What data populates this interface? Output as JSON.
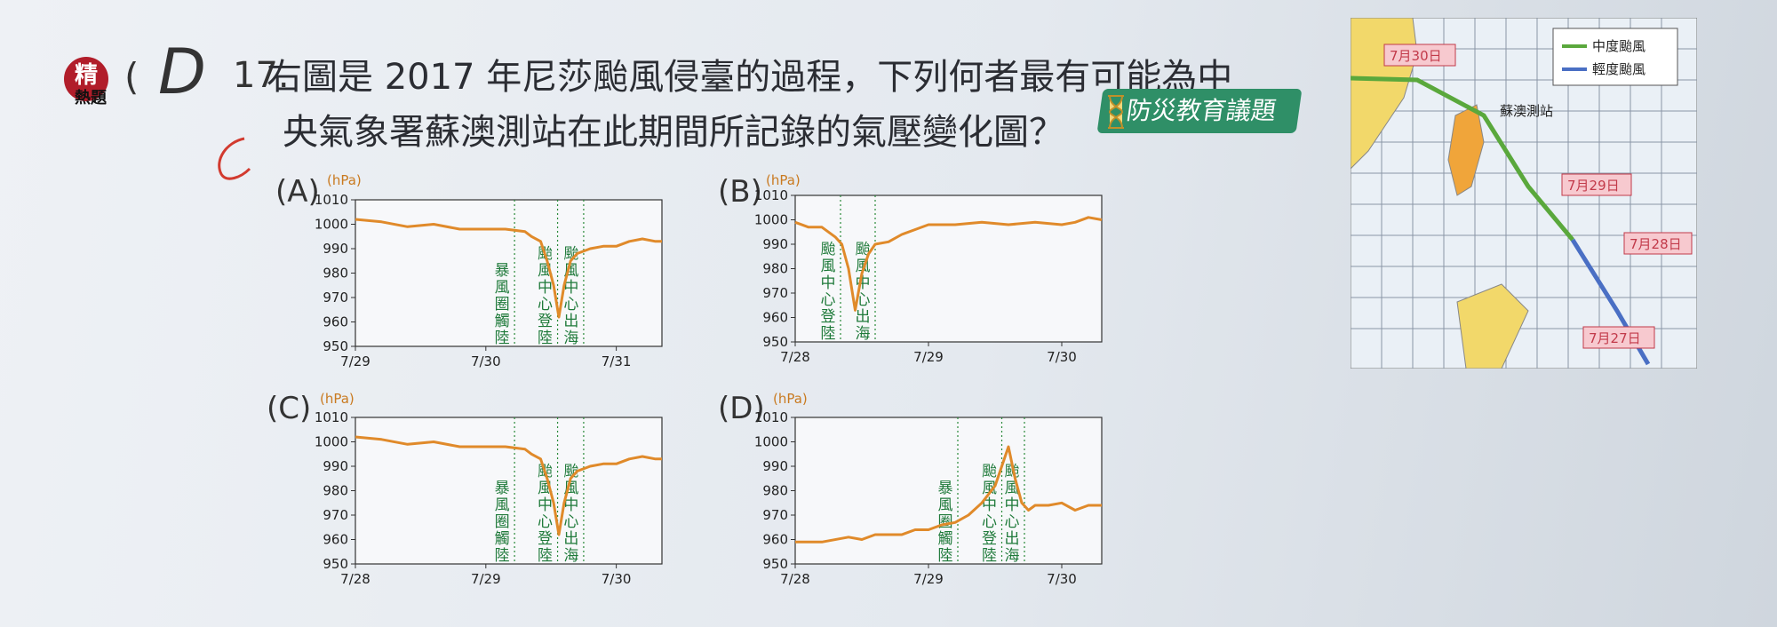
{
  "question": {
    "badge_main": "精",
    "badge_sub": "熱題",
    "paren_open": "(",
    "answer_mark": "D",
    "number": "17.",
    "line1": "右圖是 2017 年尼莎颱風侵臺的過程，下列何者最有可能為中",
    "line2": "央氣象署蘇澳測站在此期間所記錄的氣壓變化圖？",
    "tag": "防災教育議題"
  },
  "map": {
    "legend": [
      {
        "label": "中度颱風",
        "color": "#5aa83c"
      },
      {
        "label": "輕度颱風",
        "color": "#4a6fc4"
      }
    ],
    "station": "蘇澳測站",
    "dates": [
      "7月30日",
      "7月29日",
      "7月28日",
      "7月27日"
    ]
  },
  "chart_data": [
    {
      "label": "(A)",
      "type": "line",
      "unit": "(hPa)",
      "ylim": [
        950,
        1010
      ],
      "yticks": [
        1010,
        1000,
        990,
        980,
        970,
        960,
        950
      ],
      "xtick_labels": [
        "7/29",
        "7/30",
        "7/31"
      ],
      "x": [
        0,
        0.2,
        0.4,
        0.6,
        0.8,
        1.0,
        1.15,
        1.3,
        1.35,
        1.42,
        1.47,
        1.52,
        1.56,
        1.6,
        1.65,
        1.7,
        1.8,
        1.9,
        2.0,
        2.1,
        2.2,
        2.3,
        2.35
      ],
      "values": [
        1002,
        1001,
        999,
        1000,
        998,
        998,
        998,
        997,
        995,
        993,
        985,
        975,
        962,
        975,
        985,
        988,
        990,
        991,
        991,
        993,
        994,
        993,
        993
      ],
      "color": "#e08a2a",
      "markers": [
        {
          "x": 1.22,
          "text": "暴風圈觸陸"
        },
        {
          "x": 1.55,
          "text": "颱風中心登陸"
        },
        {
          "x": 1.75,
          "text": "颱風中心出海"
        }
      ],
      "xrange": [
        0,
        2.35
      ]
    },
    {
      "label": "(B)",
      "type": "line",
      "unit": "(hPa)",
      "ylim": [
        950,
        1010
      ],
      "yticks": [
        1010,
        1000,
        990,
        980,
        970,
        960,
        950
      ],
      "xtick_labels": [
        "7/28",
        "7/29",
        "7/30"
      ],
      "x": [
        0,
        0.1,
        0.2,
        0.3,
        0.35,
        0.4,
        0.45,
        0.5,
        0.55,
        0.6,
        0.7,
        0.8,
        0.9,
        1.0,
        1.2,
        1.4,
        1.6,
        1.8,
        2.0,
        2.1,
        2.2,
        2.3
      ],
      "values": [
        999,
        997,
        997,
        993,
        990,
        980,
        963,
        978,
        986,
        990,
        991,
        994,
        996,
        998,
        998,
        999,
        998,
        999,
        998,
        999,
        1001,
        1000
      ],
      "color": "#e08a2a",
      "markers": [
        {
          "x": 0.34,
          "text": "颱風中心登陸"
        },
        {
          "x": 0.6,
          "text": "颱風中心出海"
        }
      ],
      "xrange": [
        0,
        2.3
      ]
    },
    {
      "label": "(C)",
      "type": "line",
      "unit": "(hPa)",
      "ylim": [
        950,
        1010
      ],
      "yticks": [
        1010,
        1000,
        990,
        980,
        970,
        960,
        950
      ],
      "xtick_labels": [
        "7/28",
        "7/29",
        "7/30"
      ],
      "x": [
        0,
        0.2,
        0.4,
        0.6,
        0.8,
        1.0,
        1.15,
        1.3,
        1.35,
        1.42,
        1.47,
        1.52,
        1.56,
        1.6,
        1.65,
        1.7,
        1.8,
        1.9,
        2.0,
        2.1,
        2.2,
        2.3,
        2.35
      ],
      "values": [
        1002,
        1001,
        999,
        1000,
        998,
        998,
        998,
        997,
        995,
        993,
        985,
        975,
        962,
        975,
        985,
        988,
        990,
        991,
        991,
        993,
        994,
        993,
        993
      ],
      "color": "#e08a2a",
      "markers": [
        {
          "x": 1.22,
          "text": "暴風圈觸陸"
        },
        {
          "x": 1.55,
          "text": "颱風中心登陸"
        },
        {
          "x": 1.75,
          "text": "颱風中心出海"
        }
      ],
      "xrange": [
        0,
        2.35
      ]
    },
    {
      "label": "(D)",
      "type": "line",
      "unit": "(hPa)",
      "ylim": [
        950,
        1010
      ],
      "yticks": [
        1010,
        1000,
        990,
        980,
        970,
        960,
        950
      ],
      "xtick_labels": [
        "7/28",
        "7/29",
        "7/30"
      ],
      "x": [
        0,
        0.2,
        0.4,
        0.5,
        0.6,
        0.8,
        0.9,
        1.0,
        1.1,
        1.2,
        1.3,
        1.4,
        1.5,
        1.6,
        1.65,
        1.7,
        1.75,
        1.8,
        1.9,
        2.0,
        2.1,
        2.2,
        2.3
      ],
      "values": [
        959,
        959,
        961,
        960,
        962,
        962,
        964,
        964,
        966,
        967,
        970,
        975,
        982,
        998,
        985,
        975,
        972,
        974,
        974,
        975,
        972,
        974,
        974
      ],
      "color": "#e08a2a",
      "markers": [
        {
          "x": 1.22,
          "text": "暴風圈觸陸"
        },
        {
          "x": 1.55,
          "text": "颱風中心登陸"
        },
        {
          "x": 1.72,
          "text": "颱風中心出海"
        }
      ],
      "xrange": [
        0,
        2.3
      ]
    }
  ]
}
